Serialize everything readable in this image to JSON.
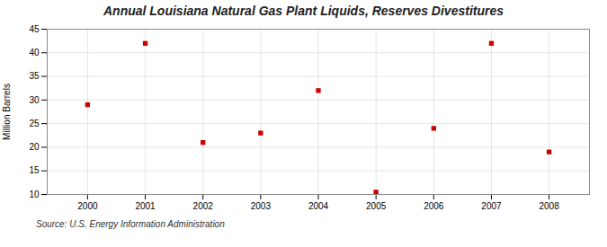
{
  "chart_data": {
    "type": "scatter",
    "title": "Annual Louisiana Natural Gas Plant Liquids, Reserves Divestitures",
    "ylabel": "Million Barrels",
    "source": "Source: U.S. Energy Information Administration",
    "x": [
      2000,
      2001,
      2002,
      2003,
      2004,
      2005,
      2006,
      2007,
      2008
    ],
    "values": [
      29.0,
      42.0,
      21.0,
      23.0,
      32.0,
      10.5,
      24.0,
      42.0,
      19.0
    ],
    "xlim": [
      1999.3,
      2008.7
    ],
    "ylim": [
      10,
      45
    ],
    "xticks": [
      2000,
      2001,
      2002,
      2003,
      2004,
      2005,
      2006,
      2007,
      2008
    ],
    "yticks": [
      10,
      15,
      20,
      25,
      30,
      35,
      40,
      45
    ],
    "color": "#cc0000",
    "marker": "square",
    "grid": true
  }
}
